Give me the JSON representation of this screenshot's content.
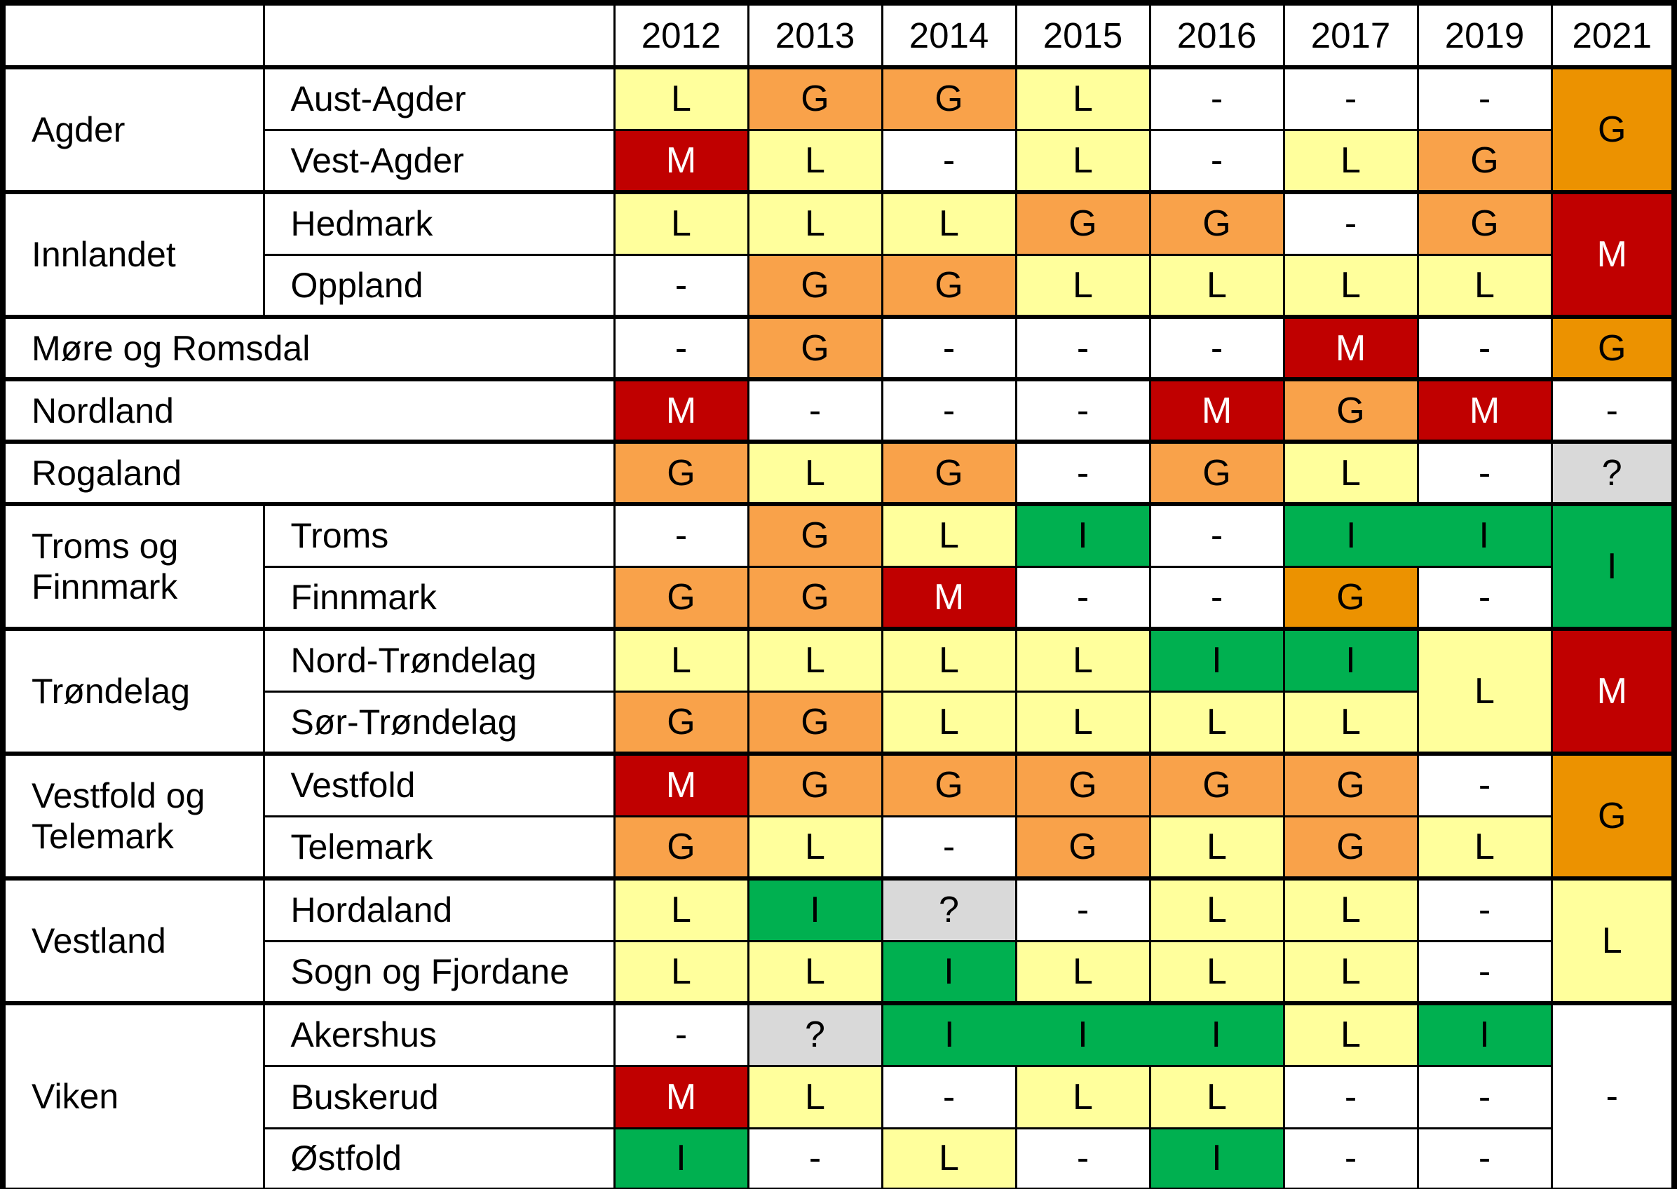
{
  "chart_data": {
    "type": "heatmap",
    "title": "",
    "columns": [
      "2012",
      "2013",
      "2014",
      "2015",
      "2016",
      "2017",
      "2019",
      "2021"
    ],
    "cell_values_used": [
      "L",
      "G",
      "M",
      "I",
      "?",
      "-"
    ],
    "palette": {
      "yellow": "#FFFF9C",
      "orange": "#F9A24A",
      "amber": "#EC9200",
      "red": "#C00000",
      "green": "#00B050",
      "gray": "#D9D9D9",
      "white": "#FFFFFF"
    },
    "value_text_colors": {
      "red_cells": "#FFFFFF",
      "default": "#000000"
    },
    "groups": [
      {
        "region": "Agder",
        "rows": [
          {
            "county": "Aust-Agder",
            "cells": [
              {
                "v": "L",
                "s": "yellow"
              },
              {
                "v": "G",
                "s": "orange"
              },
              {
                "v": "G",
                "s": "orange"
              },
              {
                "v": "L",
                "s": "yellow"
              },
              {
                "v": "-",
                "s": "white"
              },
              {
                "v": "-",
                "s": "white"
              },
              {
                "v": "-",
                "s": "white"
              },
              {
                "v": "G",
                "s": "amber",
                "rs": 2
              }
            ]
          },
          {
            "county": "Vest-Agder",
            "cells": [
              {
                "v": "M",
                "s": "red"
              },
              {
                "v": "L",
                "s": "yellow"
              },
              {
                "v": "-",
                "s": "white"
              },
              {
                "v": "L",
                "s": "yellow"
              },
              {
                "v": "-",
                "s": "white"
              },
              {
                "v": "L",
                "s": "yellow"
              },
              {
                "v": "G",
                "s": "orange"
              }
            ]
          }
        ]
      },
      {
        "region": "Innlandet",
        "rows": [
          {
            "county": "Hedmark",
            "cells": [
              {
                "v": "L",
                "s": "yellow"
              },
              {
                "v": "L",
                "s": "yellow"
              },
              {
                "v": "L",
                "s": "yellow"
              },
              {
                "v": "G",
                "s": "orange"
              },
              {
                "v": "G",
                "s": "orange"
              },
              {
                "v": "-",
                "s": "white"
              },
              {
                "v": "G",
                "s": "orange"
              },
              {
                "v": "M",
                "s": "red",
                "rs": 2
              }
            ]
          },
          {
            "county": "Oppland",
            "cells": [
              {
                "v": "-",
                "s": "white"
              },
              {
                "v": "G",
                "s": "orange"
              },
              {
                "v": "G",
                "s": "orange"
              },
              {
                "v": "L",
                "s": "yellow"
              },
              {
                "v": "L",
                "s": "yellow"
              },
              {
                "v": "L",
                "s": "yellow"
              },
              {
                "v": "L",
                "s": "yellow"
              }
            ]
          }
        ]
      },
      {
        "region": "Møre og Romsdal",
        "rows": [
          {
            "county": null,
            "cells": [
              {
                "v": "-",
                "s": "white"
              },
              {
                "v": "G",
                "s": "orange"
              },
              {
                "v": "-",
                "s": "white"
              },
              {
                "v": "-",
                "s": "white"
              },
              {
                "v": "-",
                "s": "white"
              },
              {
                "v": "M",
                "s": "red"
              },
              {
                "v": "-",
                "s": "white"
              },
              {
                "v": "G",
                "s": "amber"
              }
            ]
          }
        ]
      },
      {
        "region": "Nordland",
        "rows": [
          {
            "county": null,
            "cells": [
              {
                "v": "M",
                "s": "red"
              },
              {
                "v": "-",
                "s": "white"
              },
              {
                "v": "-",
                "s": "white"
              },
              {
                "v": "-",
                "s": "white"
              },
              {
                "v": "M",
                "s": "red"
              },
              {
                "v": "G",
                "s": "orange"
              },
              {
                "v": "M",
                "s": "red"
              },
              {
                "v": "-",
                "s": "white"
              }
            ]
          }
        ]
      },
      {
        "region": "Rogaland",
        "rows": [
          {
            "county": null,
            "cells": [
              {
                "v": "G",
                "s": "orange"
              },
              {
                "v": "L",
                "s": "yellow"
              },
              {
                "v": "G",
                "s": "orange"
              },
              {
                "v": "-",
                "s": "white"
              },
              {
                "v": "G",
                "s": "orange"
              },
              {
                "v": "L",
                "s": "yellow"
              },
              {
                "v": "-",
                "s": "white"
              },
              {
                "v": "?",
                "s": "gray"
              }
            ]
          }
        ]
      },
      {
        "region": "Troms og Finnmark",
        "rows": [
          {
            "county": "Troms",
            "cells": [
              {
                "v": "-",
                "s": "white"
              },
              {
                "v": "G",
                "s": "orange"
              },
              {
                "v": "L",
                "s": "yellow"
              },
              {
                "v": "I",
                "s": "green"
              },
              {
                "v": "-",
                "s": "white"
              },
              {
                "v": "I",
                "s": "green",
                "hr": true
              },
              {
                "v": "I",
                "s": "green"
              },
              {
                "v": "I",
                "s": "green",
                "rs": 2
              }
            ]
          },
          {
            "county": "Finnmark",
            "cells": [
              {
                "v": "G",
                "s": "orange"
              },
              {
                "v": "G",
                "s": "orange"
              },
              {
                "v": "M",
                "s": "red"
              },
              {
                "v": "-",
                "s": "white"
              },
              {
                "v": "-",
                "s": "white"
              },
              {
                "v": "G",
                "s": "amber"
              },
              {
                "v": "-",
                "s": "white"
              }
            ]
          }
        ]
      },
      {
        "region": "Trøndelag",
        "rows": [
          {
            "county": "Nord-Trøndelag",
            "cells": [
              {
                "v": "L",
                "s": "yellow"
              },
              {
                "v": "L",
                "s": "yellow"
              },
              {
                "v": "L",
                "s": "yellow"
              },
              {
                "v": "L",
                "s": "yellow"
              },
              {
                "v": "I",
                "s": "green"
              },
              {
                "v": "I",
                "s": "green"
              },
              {
                "v": "L",
                "s": "yellow",
                "rs": 2
              },
              {
                "v": "M",
                "s": "red",
                "rs": 2
              }
            ]
          },
          {
            "county": "Sør-Trøndelag",
            "cells": [
              {
                "v": "G",
                "s": "orange"
              },
              {
                "v": "G",
                "s": "orange"
              },
              {
                "v": "L",
                "s": "yellow"
              },
              {
                "v": "L",
                "s": "yellow"
              },
              {
                "v": "L",
                "s": "yellow"
              },
              {
                "v": "L",
                "s": "yellow"
              }
            ]
          }
        ]
      },
      {
        "region": "Vestfold og Telemark",
        "rows": [
          {
            "county": "Vestfold",
            "cells": [
              {
                "v": "M",
                "s": "red"
              },
              {
                "v": "G",
                "s": "orange"
              },
              {
                "v": "G",
                "s": "orange"
              },
              {
                "v": "G",
                "s": "orange"
              },
              {
                "v": "G",
                "s": "orange"
              },
              {
                "v": "G",
                "s": "orange"
              },
              {
                "v": "-",
                "s": "white"
              },
              {
                "v": "G",
                "s": "amber",
                "rs": 2
              }
            ]
          },
          {
            "county": "Telemark",
            "cells": [
              {
                "v": "G",
                "s": "orange"
              },
              {
                "v": "L",
                "s": "yellow"
              },
              {
                "v": "-",
                "s": "white"
              },
              {
                "v": "G",
                "s": "orange"
              },
              {
                "v": "L",
                "s": "yellow"
              },
              {
                "v": "G",
                "s": "orange"
              },
              {
                "v": "L",
                "s": "yellow"
              }
            ]
          }
        ]
      },
      {
        "region": "Vestland",
        "rows": [
          {
            "county": "Hordaland",
            "cells": [
              {
                "v": "L",
                "s": "yellow"
              },
              {
                "v": "I",
                "s": "green"
              },
              {
                "v": "?",
                "s": "gray"
              },
              {
                "v": "-",
                "s": "white"
              },
              {
                "v": "L",
                "s": "yellow"
              },
              {
                "v": "L",
                "s": "yellow"
              },
              {
                "v": "-",
                "s": "white"
              },
              {
                "v": "L",
                "s": "yellow",
                "rs": 2
              }
            ]
          },
          {
            "county": "Sogn og Fjordane",
            "cells": [
              {
                "v": "L",
                "s": "yellow"
              },
              {
                "v": "L",
                "s": "yellow"
              },
              {
                "v": "I",
                "s": "green"
              },
              {
                "v": "L",
                "s": "yellow"
              },
              {
                "v": "L",
                "s": "yellow"
              },
              {
                "v": "L",
                "s": "yellow"
              },
              {
                "v": "-",
                "s": "white"
              }
            ]
          }
        ]
      },
      {
        "region": "Viken",
        "rows": [
          {
            "county": "Akershus",
            "cells": [
              {
                "v": "-",
                "s": "white"
              },
              {
                "v": "?",
                "s": "gray"
              },
              {
                "v": "I",
                "s": "green",
                "hr": true
              },
              {
                "v": "I",
                "s": "green",
                "hr": true
              },
              {
                "v": "I",
                "s": "green"
              },
              {
                "v": "L",
                "s": "yellow"
              },
              {
                "v": "I",
                "s": "green"
              },
              {
                "v": "-",
                "s": "white",
                "rs": 3
              }
            ]
          },
          {
            "county": "Buskerud",
            "cells": [
              {
                "v": "M",
                "s": "red"
              },
              {
                "v": "L",
                "s": "yellow"
              },
              {
                "v": "-",
                "s": "white"
              },
              {
                "v": "L",
                "s": "yellow"
              },
              {
                "v": "L",
                "s": "yellow"
              },
              {
                "v": "-",
                "s": "white"
              },
              {
                "v": "-",
                "s": "white"
              }
            ]
          },
          {
            "county": "Østfold",
            "cells": [
              {
                "v": "I",
                "s": "green"
              },
              {
                "v": "-",
                "s": "white"
              },
              {
                "v": "L",
                "s": "yellow"
              },
              {
                "v": "-",
                "s": "white"
              },
              {
                "v": "I",
                "s": "green"
              },
              {
                "v": "-",
                "s": "white"
              },
              {
                "v": "-",
                "s": "white"
              }
            ]
          }
        ]
      }
    ]
  }
}
